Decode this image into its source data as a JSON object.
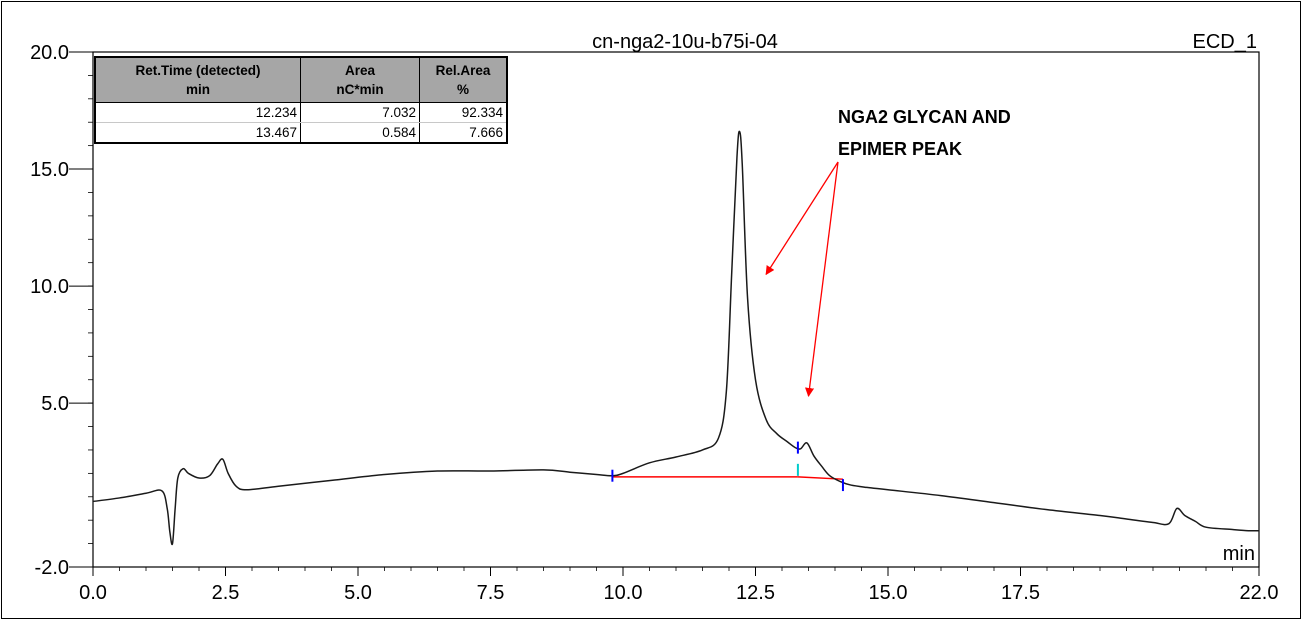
{
  "chart_data": {
    "type": "line",
    "title": "cn-nga2-10u-b75i-04",
    "channel": "ECD_1",
    "xlabel": "min",
    "ylabel": "",
    "xlim": [
      0.0,
      22.0
    ],
    "ylim": [
      -2.0,
      20.0
    ],
    "x_ticks": [
      "0.0",
      "2.5",
      "5.0",
      "7.5",
      "10.0",
      "12.5",
      "15.0",
      "17.5",
      "22.0"
    ],
    "x_tick_values": [
      0.0,
      2.5,
      5.0,
      7.5,
      10.0,
      12.5,
      15.0,
      17.5,
      22.0
    ],
    "y_ticks": [
      "-2.0",
      "5.0",
      "10.0",
      "15.0",
      "20.0"
    ],
    "y_tick_values": [
      -2.0,
      5.0,
      10.0,
      15.0,
      20.0
    ],
    "series": [
      {
        "color": "#1a1a1a",
        "x": [
          0.0,
          0.5,
          1.0,
          1.3,
          1.4,
          1.45,
          1.5,
          1.55,
          1.6,
          1.7,
          1.8,
          2.0,
          2.2,
          2.35,
          2.45,
          2.55,
          2.7,
          2.9,
          3.5,
          4.5,
          5.5,
          6.5,
          7.5,
          8.5,
          9.0,
          9.5,
          9.8,
          10.0,
          10.5,
          11.0,
          11.5,
          11.8,
          11.95,
          12.05,
          12.15,
          12.2,
          12.25,
          12.35,
          12.5,
          12.7,
          12.9,
          13.1,
          13.25,
          13.35,
          13.47,
          13.6,
          13.75,
          13.9,
          14.1,
          14.3,
          14.6,
          15.0,
          16.0,
          17.0,
          18.0,
          19.0,
          19.5,
          20.0,
          20.3,
          20.45,
          20.6,
          20.8,
          21.0,
          21.5,
          21.8,
          22.0
        ],
        "y": [
          0.8,
          0.95,
          1.15,
          1.25,
          0.5,
          -0.5,
          -1.0,
          0.5,
          1.8,
          2.2,
          2.0,
          1.8,
          1.9,
          2.4,
          2.6,
          2.0,
          1.45,
          1.3,
          1.45,
          1.7,
          1.95,
          2.1,
          2.1,
          2.15,
          2.05,
          1.95,
          1.9,
          2.0,
          2.45,
          2.7,
          3.0,
          3.5,
          5.5,
          10.5,
          15.5,
          16.6,
          15.2,
          9.5,
          6.0,
          4.3,
          3.7,
          3.35,
          3.1,
          3.05,
          3.3,
          2.75,
          2.3,
          1.9,
          1.65,
          1.5,
          1.4,
          1.3,
          1.05,
          0.75,
          0.45,
          0.2,
          0.05,
          -0.1,
          -0.15,
          0.5,
          0.2,
          -0.05,
          -0.3,
          -0.4,
          -0.45,
          -0.45
        ]
      }
    ],
    "baselines": [
      {
        "color": "#ff0000",
        "x": [
          9.8,
          13.3
        ],
        "y": [
          1.85,
          1.85
        ]
      },
      {
        "color": "#ff0000",
        "x": [
          13.3,
          14.15
        ],
        "y": [
          1.85,
          1.75
        ]
      }
    ],
    "peak_markers": [
      {
        "color": "#0000ff",
        "x": 9.8,
        "y": 1.9
      },
      {
        "color": "#0000ff",
        "x": 13.3,
        "y": 3.1
      },
      {
        "color": "#00cccc",
        "x": 13.3,
        "y": 2.15
      },
      {
        "color": "#0000ff",
        "x": 14.15,
        "y": 1.5
      }
    ],
    "annotation": {
      "lines": [
        "NGA2 GLYCAN AND",
        "EPIMER PEAK"
      ],
      "arrow_color": "#ff0000",
      "arrow_targets": [
        {
          "x": 12.7,
          "y": 10.5
        },
        {
          "x": 13.5,
          "y": 5.3
        }
      ]
    },
    "table": {
      "header_row1": [
        "Ret.Time (detected)",
        "Area",
        "Rel.Area"
      ],
      "header_row2": [
        "min",
        "nC*min",
        "%"
      ],
      "rows": [
        [
          "12.234",
          "7.032",
          "92.334"
        ],
        [
          "13.467",
          "0.584",
          "7.666"
        ]
      ]
    }
  }
}
